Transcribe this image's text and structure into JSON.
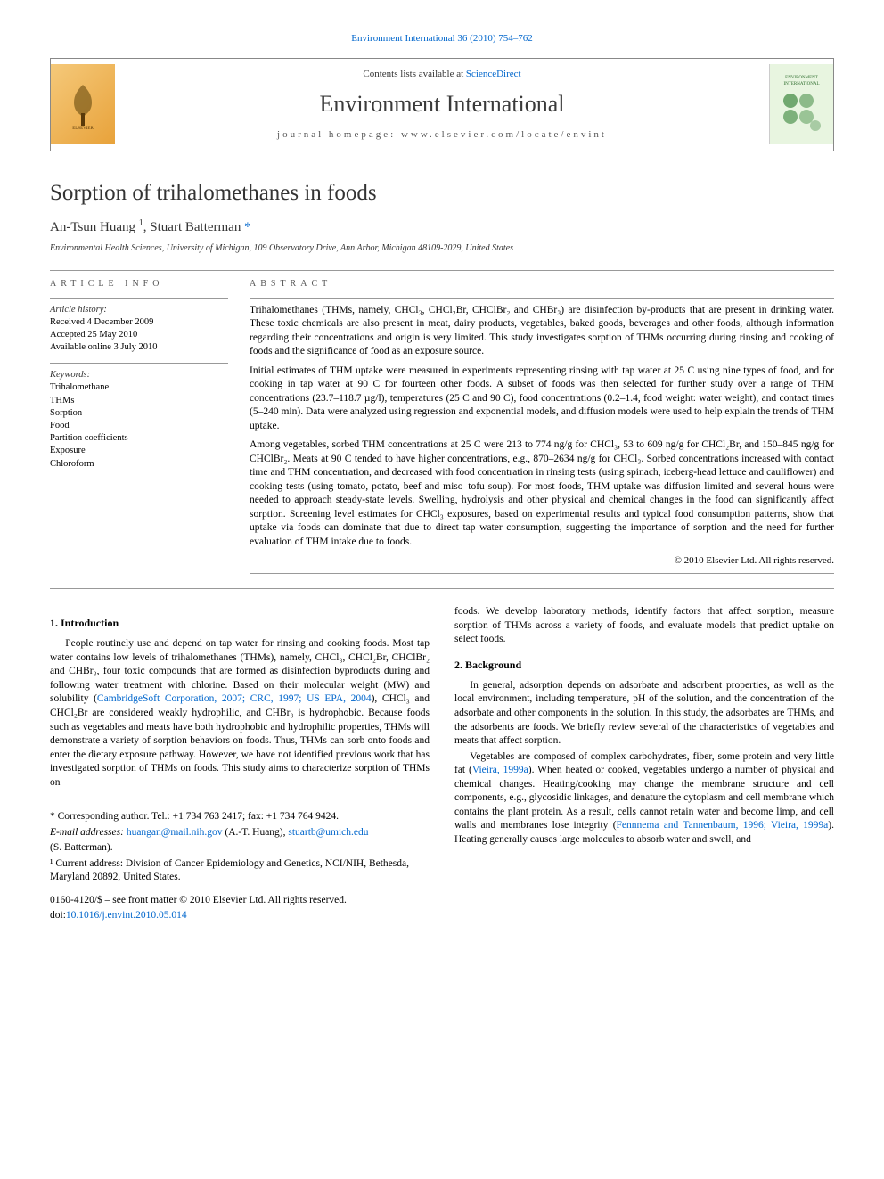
{
  "topLink": {
    "journal": "Environment International",
    "citation": "36 (2010) 754–762"
  },
  "header": {
    "contents_prefix": "Contents lists available at ",
    "contents_link": "ScienceDirect",
    "journal": "Environment International",
    "homepage_prefix": "journal homepage: ",
    "homepage": "www.elsevier.com/locate/envint"
  },
  "title": "Sorption of trihalomethanes in foods",
  "authors_html": "An-Tsun Huang <sup>1</sup>, Stuart Batterman <a>*</a>",
  "affiliation": "Environmental Health Sciences, University of Michigan, 109 Observatory Drive, Ann Arbor, Michigan 48109-2029, United States",
  "meta": {
    "info_label": "ARTICLE INFO",
    "history_heading": "Article history:",
    "history": [
      "Received 4 December 2009",
      "Accepted 25 May 2010",
      "Available online 3 July 2010"
    ],
    "keywords_heading": "Keywords:",
    "keywords": [
      "Trihalomethane",
      "THMs",
      "Sorption",
      "Food",
      "Partition coefficients",
      "Exposure",
      "Chloroform"
    ]
  },
  "abstract": {
    "label": "ABSTRACT",
    "paras": [
      "Trihalomethanes (THMs, namely, CHCl₃, CHCl₂Br, CHClBr₂ and CHBr₃) are disinfection by-products that are present in drinking water. These toxic chemicals are also present in meat, dairy products, vegetables, baked goods, beverages and other foods, although information regarding their concentrations and origin is very limited. This study investigates sorption of THMs occurring during rinsing and cooking of foods and the significance of food as an exposure source.",
      "Initial estimates of THM uptake were measured in experiments representing rinsing with tap water at 25 C using nine types of food, and for cooking in tap water at 90 C for fourteen other foods. A subset of foods was then selected for further study over a range of THM concentrations (23.7–118.7 µg/l), temperatures (25 C and 90 C), food concentrations (0.2–1.4, food weight: water weight), and contact times (5–240 min). Data were analyzed using regression and exponential models, and diffusion models were used to help explain the trends of THM uptake.",
      "Among vegetables, sorbed THM concentrations at 25 C were 213 to 774 ng/g for CHCl₃, 53 to 609 ng/g for CHCl₂Br, and 150–845 ng/g for CHClBr₂. Meats at 90 C tended to have higher concentrations, e.g., 870–2634 ng/g for CHCl₃. Sorbed concentrations increased with contact time and THM concentration, and decreased with food concentration in rinsing tests (using spinach, iceberg-head lettuce and cauliflower) and cooking tests (using tomato, potato, beef and miso–tofu soup). For most foods, THM uptake was diffusion limited and several hours were needed to approach steady-state levels. Swelling, hydrolysis and other physical and chemical changes in the food can significantly affect sorption. Screening level estimates for CHCl₃ exposures, based on experimental results and typical food consumption patterns, show that uptake via foods can dominate that due to direct tap water consumption, suggesting the importance of sorption and the need for further evaluation of THM intake due to foods."
    ],
    "copyright": "© 2010 Elsevier Ltd. All rights reserved."
  },
  "body": {
    "s1_heading": "1. Introduction",
    "s1_p1": "People routinely use and depend on tap water for rinsing and cooking foods. Most tap water contains low levels of trihalomethanes (THMs), namely, CHCl₃, CHCl₂Br, CHClBr₂ and CHBr₃, four toxic compounds that are formed as disinfection byproducts during and following water treatment with chlorine. Based on their molecular weight (MW) and solubility (",
    "s1_p1_link": "CambridgeSoft Corporation, 2007; CRC, 1997; US EPA, 2004",
    "s1_p1b": "), CHCl₃ and CHCl₂Br are considered weakly hydrophilic, and CHBr₃ is hydrophobic. Because foods such as vegetables and meats have both hydrophobic and hydrophilic properties, THMs will demonstrate a variety of sorption behaviors on foods. Thus, THMs can sorb onto foods and enter the dietary exposure pathway. However, we have not identified previous work that has investigated sorption of THMs on foods. This study aims to characterize sorption of THMs on",
    "s1_p2": "foods. We develop laboratory methods, identify factors that affect sorption, measure sorption of THMs across a variety of foods, and evaluate models that predict uptake on select foods.",
    "s2_heading": "2. Background",
    "s2_p1": "In general, adsorption depends on adsorbate and adsorbent properties, as well as the local environment, including temperature, pH of the solution, and the concentration of the adsorbate and other components in the solution. In this study, the adsorbates are THMs, and the adsorbents are foods. We briefly review several of the characteristics of vegetables and meats that affect sorption.",
    "s2_p2a": "Vegetables are composed of complex carbohydrates, fiber, some protein and very little fat (",
    "s2_p2_link1": "Vieira, 1999a",
    "s2_p2b": "). When heated or cooked, vegetables undergo a number of physical and chemical changes. Heating/cooking may change the membrane structure and cell components, e.g., glycosidic linkages, and denature the cytoplasm and cell membrane which contains the plant protein. As a result, cells cannot retain water and become limp, and cell walls and membranes lose integrity (",
    "s2_p2_link2": "Fennnema and Tannenbaum, 1996; Vieira, 1999a",
    "s2_p2c": "). Heating generally causes large molecules to absorb water and swell, and"
  },
  "footnotes": {
    "corr": "* Corresponding author. Tel.: +1 734 763 2417; fax: +1 734 764 9424.",
    "email_label": "E-mail addresses: ",
    "email1": "huangan@mail.nih.gov",
    "email1_who": " (A.-T. Huang), ",
    "email2": "stuartb@umich.edu",
    "email2_who": "(S. Batterman).",
    "note1": "¹ Current address: Division of Cancer Epidemiology and Genetics, NCI/NIH, Bethesda, Maryland 20892, United States."
  },
  "doi": {
    "front": "0160-4120/$ – see front matter © 2010 Elsevier Ltd. All rights reserved.",
    "doi_label": "doi:",
    "doi": "10.1016/j.envint.2010.05.014"
  },
  "colors": {
    "link": "#0066cc",
    "rule": "#999999",
    "text": "#000000",
    "elsevier_bg": "#f0b860",
    "cover_bg": "#e8f5e0"
  }
}
